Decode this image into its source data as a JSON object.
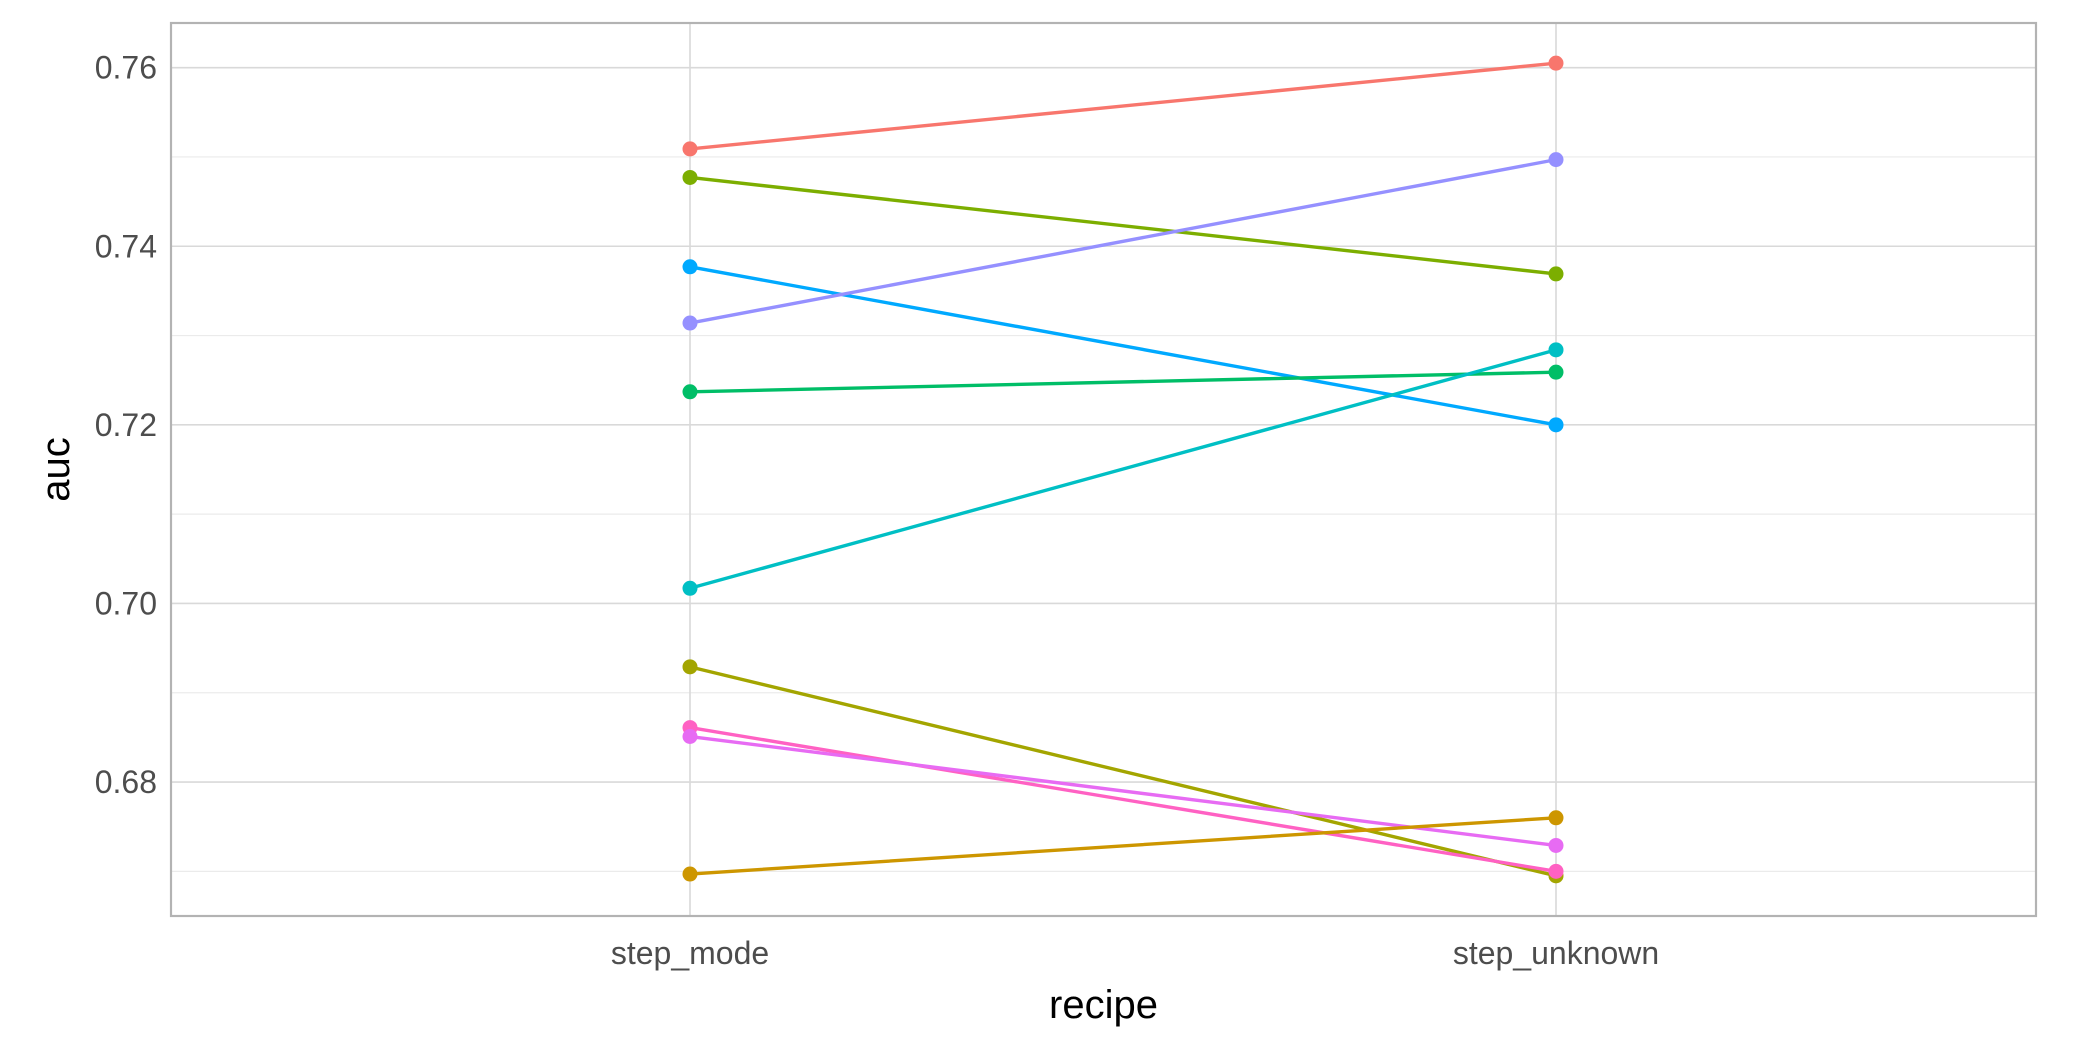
{
  "chart_data": {
    "type": "line",
    "title": "",
    "xlabel": "recipe",
    "ylabel": "auc",
    "categories": [
      "step_mode",
      "step_unknown"
    ],
    "ylim": [
      0.665,
      0.765
    ],
    "y_major_ticks": [
      0.68,
      0.7,
      0.72,
      0.74,
      0.76
    ],
    "y_tick_labels": [
      "0.68",
      "0.70",
      "0.72",
      "0.74",
      "0.76"
    ],
    "y_minor_ticks": [
      0.67,
      0.69,
      0.71,
      0.73,
      0.75
    ],
    "grid": true,
    "legend": "none",
    "series": [
      {
        "color": "#F8766D",
        "values": [
          0.7509,
          0.7605
        ]
      },
      {
        "color": "#7CAE00",
        "values": [
          0.7477,
          0.7369
        ]
      },
      {
        "color": "#00A9FF",
        "values": [
          0.7377,
          0.72
        ]
      },
      {
        "color": "#9590FF",
        "values": [
          0.7314,
          0.7497
        ]
      },
      {
        "color": "#00BE67",
        "values": [
          0.7237,
          0.7259
        ]
      },
      {
        "color": "#00BFC4",
        "values": [
          0.7017,
          0.7284
        ]
      },
      {
        "color": "#A3A500",
        "values": [
          0.6929,
          0.6695
        ]
      },
      {
        "color": "#FF61C3",
        "values": [
          0.6861,
          0.67
        ]
      },
      {
        "color": "#E76BF3",
        "values": [
          0.6851,
          0.6729
        ]
      },
      {
        "color": "#CD9600",
        "values": [
          0.6697,
          0.676
        ]
      }
    ]
  }
}
